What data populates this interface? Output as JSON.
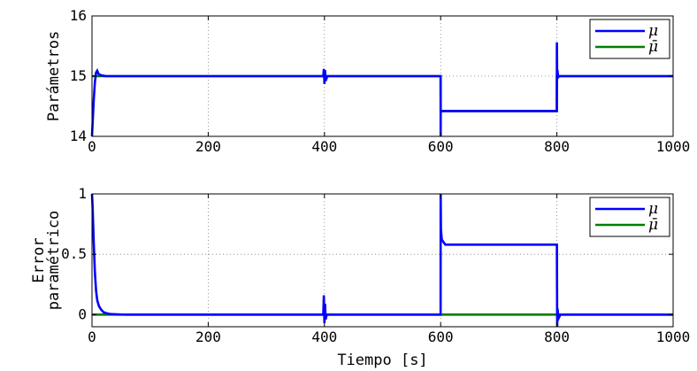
{
  "chart_data": [
    {
      "type": "line",
      "title": "",
      "xlabel": "",
      "ylabel": "Parámetros",
      "xlim": [
        0,
        1000
      ],
      "ylim": [
        14,
        16
      ],
      "xticks": [
        "0",
        "200",
        "400",
        "600",
        "800",
        "1000"
      ],
      "yticks": [
        "14",
        "15",
        "16"
      ],
      "grid": true,
      "legend_placement": "top-right",
      "series": [
        {
          "name": "μ",
          "color": "#0000ff",
          "x": [
            0,
            3,
            5,
            7,
            9,
            11,
            14,
            18,
            24,
            30,
            40,
            60,
            398,
            399,
            400,
            401,
            402,
            405,
            408,
            500,
            599.9,
            600,
            600.1,
            601,
            700,
            799.9,
            800,
            800.5,
            801,
            802,
            804,
            810,
            900,
            1000
          ],
          "y": [
            14.0,
            14.6,
            14.9,
            15.06,
            15.09,
            15.04,
            15.02,
            15.01,
            15.0,
            15.0,
            15.0,
            15.0,
            15.0,
            15.12,
            14.87,
            15.1,
            14.92,
            15.0,
            15.0,
            15.0,
            15.0,
            14.0,
            14.42,
            14.42,
            14.42,
            14.42,
            15.56,
            14.95,
            15.1,
            14.98,
            15.0,
            15.0,
            15.0,
            15.0
          ]
        },
        {
          "name": "μ̄",
          "color": "#007f00",
          "x": [
            0,
            600,
            600.1,
            799.9,
            800,
            1000
          ],
          "y": [
            15.0,
            15.0,
            14.42,
            14.42,
            15.0,
            15.0
          ]
        }
      ]
    },
    {
      "type": "line",
      "title": "",
      "xlabel": "Tiempo [s]",
      "ylabel": "Error paramétrico",
      "xlim": [
        0,
        1000
      ],
      "ylim": [
        -0.1,
        1
      ],
      "xticks": [
        "0",
        "200",
        "400",
        "600",
        "800",
        "1000"
      ],
      "yticks": [
        "0",
        "0.5",
        "1"
      ],
      "grid": true,
      "legend_placement": "top-right",
      "series": [
        {
          "name": "μ",
          "color": "#0000ff",
          "x": [
            0,
            1,
            3,
            5,
            7,
            9,
            12,
            16,
            20,
            25,
            30,
            40,
            50,
            60,
            398,
            399,
            400,
            401,
            402,
            404,
            500,
            599.9,
            600,
            600.5,
            602,
            605,
            608,
            700,
            799.9,
            800,
            800.5,
            801,
            803,
            806,
            900,
            1000
          ],
          "y": [
            1.0,
            0.9,
            0.6,
            0.35,
            0.2,
            0.12,
            0.07,
            0.04,
            0.02,
            0.012,
            0.006,
            0.003,
            0.001,
            0.0,
            0.0,
            0.16,
            -0.07,
            0.09,
            -0.04,
            0.0,
            0.0,
            0.0,
            1.0,
            0.7,
            0.62,
            0.6,
            0.58,
            0.58,
            0.58,
            0.58,
            -0.1,
            0.05,
            -0.03,
            0.0,
            0.0,
            0.0
          ]
        },
        {
          "name": "μ̄",
          "color": "#007f00",
          "x": [
            0,
            1000
          ],
          "y": [
            0.0,
            0.0
          ]
        }
      ]
    }
  ]
}
